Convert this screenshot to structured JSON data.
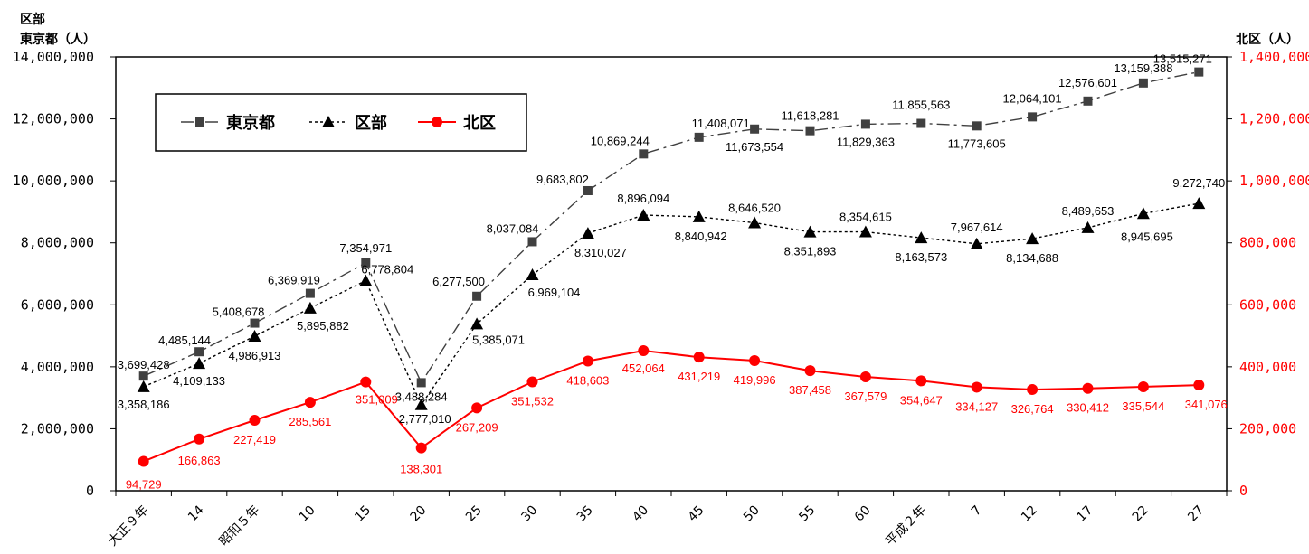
{
  "chart_data": {
    "type": "line",
    "left_axis_title_line1": "区部",
    "left_axis_title_line2": "東京都（人）",
    "right_axis_title": "北区（人）",
    "left_ylim": [
      0,
      14000000
    ],
    "right_ylim": [
      0,
      1400000
    ],
    "left_ticks": [
      "0",
      "2,000,000",
      "4,000,000",
      "6,000,000",
      "8,000,000",
      "10,000,000",
      "12,000,000",
      "14,000,000"
    ],
    "right_ticks": [
      "0",
      "200,000",
      "400,000",
      "600,000",
      "800,000",
      "1,000,000",
      "1,200,000",
      "1,400,000"
    ],
    "categories": [
      "大正９年",
      "14",
      "昭和５年",
      "10",
      "15",
      "20",
      "25",
      "30",
      "35",
      "40",
      "45",
      "50",
      "55",
      "60",
      "平成２年",
      "7",
      "12",
      "17",
      "22",
      "27"
    ],
    "legend_position": "top-left",
    "series": [
      {
        "name": "東京都",
        "axis": "left",
        "color": "#404040",
        "marker": "square",
        "line": "dashdot",
        "values": [
          3699428,
          4485144,
          5408678,
          6369919,
          7354971,
          3488284,
          6277500,
          8037084,
          9683802,
          10869244,
          11408071,
          11673554,
          11618281,
          11829363,
          11855563,
          11773605,
          12064101,
          12576601,
          13159388,
          13515271
        ],
        "labels": [
          "3,699,428",
          "4,485,144",
          "5,408,678",
          "6,369,919",
          "7,354,971",
          "3,488,284",
          "6,277,500",
          "8,037,084",
          "9,683,802",
          "10,869,244",
          "11,408,071",
          "11,673,554",
          "11,618,281",
          "11,829,363",
          "11,855,563",
          "11,773,605",
          "12,064,101",
          "12,576,601",
          "13,159,388",
          "13,515,271"
        ]
      },
      {
        "name": "区部",
        "axis": "left",
        "color": "#000000",
        "marker": "triangle",
        "line": "dotted",
        "values": [
          3358186,
          4109133,
          4986913,
          5895882,
          6778804,
          2777010,
          5385071,
          6969104,
          8310027,
          8896094,
          8840942,
          8646520,
          8351893,
          8354615,
          8163573,
          7967614,
          8134688,
          8489653,
          8945695,
          9272740
        ],
        "labels": [
          "3,358,186",
          "4,109,133",
          "4,986,913",
          "5,895,882",
          "6,778,804",
          "2,777,010",
          "5,385,071",
          "6,969,104",
          "8,310,027",
          "8,896,094",
          "8,840,942",
          "8,646,520",
          "8,351,893",
          "8,354,615",
          "8,163,573",
          "7,967,614",
          "8,134,688",
          "8,489,653",
          "8,945,695",
          "9,272,740"
        ]
      },
      {
        "name": "北区",
        "axis": "right",
        "color": "#ff0000",
        "marker": "circle",
        "line": "solid",
        "values": [
          94729,
          166863,
          227419,
          285561,
          351009,
          138301,
          267209,
          351532,
          418603,
          452064,
          431219,
          419996,
          387458,
          367579,
          354647,
          334127,
          326764,
          330412,
          335544,
          341076
        ],
        "labels": [
          "94,729",
          "166,863",
          "227,419",
          "285,561",
          "351,009",
          "138,301",
          "267,209",
          "351,532",
          "418,603",
          "452,064",
          "431,219",
          "419,996",
          "387,458",
          "367,579",
          "354,647",
          "334,127",
          "326,764",
          "330,412",
          "335,544",
          "341,076"
        ]
      }
    ]
  }
}
